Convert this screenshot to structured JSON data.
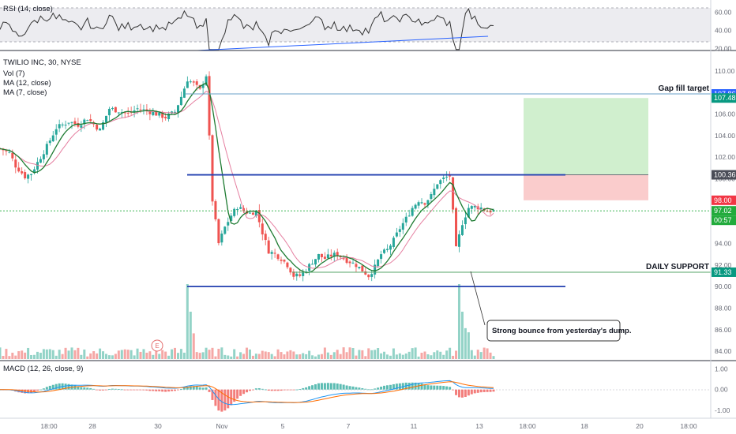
{
  "chart_data": {
    "type": "candlestick",
    "symbol": "TWILIO INC, 30, NYSE",
    "legend": [
      "Vol (7)",
      "MA (12, close)",
      "MA (7, close)"
    ],
    "rsi_label": "RSI (14, close)",
    "macd_label": "MACD (12, 26, close, 9)",
    "price_ticks": [
      "110.00",
      "108.00",
      "106.00",
      "104.00",
      "102.00",
      "100.00",
      "98.00",
      "96.00",
      "94.00",
      "92.00",
      "90.00",
      "88.00",
      "86.00",
      "84.00"
    ],
    "rsi_ticks": [
      "60.00",
      "40.00",
      "20.00"
    ],
    "macd_ticks": [
      "1.00",
      "0.00",
      "-1.00"
    ],
    "x_labels": [
      "18:00",
      "28",
      "30",
      "Nov",
      "5",
      "7",
      "11",
      "13",
      "18:00",
      "18",
      "20",
      "18:00"
    ],
    "price_tags": [
      {
        "value": "107.86",
        "color": "#2962ff"
      },
      {
        "value": "107.48",
        "color": "#089981"
      },
      {
        "value": "100.36",
        "color": "#4a4d57"
      },
      {
        "value": "98.00",
        "color": "#f23645"
      },
      {
        "value": "97.02",
        "color": "#22ab3c"
      },
      {
        "value": "00:57",
        "color": "#22ab3c"
      },
      {
        "value": "91.33",
        "color": "#089981"
      }
    ],
    "annotations": {
      "gap_fill": "Gap fill target",
      "daily_support": "DAILY SUPPORT",
      "callout": "Strong bounce from yesterday's dump.",
      "earnings": "E"
    },
    "levels": {
      "gap_fill_target": 107.86,
      "resistance": 100.36,
      "current": 97.02,
      "daily_support": 91.33,
      "support_low": 90.0
    },
    "position": {
      "entry": 100.36,
      "target": 107.48,
      "stop": 98.0
    },
    "price_path": [
      [
        0,
        102.8
      ],
      [
        3,
        102.4
      ],
      [
        5,
        101.2
      ],
      [
        8,
        100.2
      ],
      [
        10,
        100.5
      ],
      [
        12,
        101.5
      ],
      [
        15,
        103.0
      ],
      [
        18,
        104.7
      ],
      [
        22,
        105.3
      ],
      [
        25,
        105.0
      ],
      [
        28,
        105.6
      ],
      [
        32,
        104.5
      ],
      [
        35,
        106.5
      ],
      [
        38,
        106.3
      ],
      [
        41,
        106.0
      ],
      [
        44,
        106.5
      ],
      [
        47,
        106.3
      ],
      [
        50,
        106.0
      ],
      [
        53,
        105.7
      ],
      [
        56,
        106.2
      ],
      [
        58,
        107.6
      ],
      [
        60,
        109.2
      ],
      [
        62,
        108.8
      ],
      [
        64,
        108.2
      ],
      [
        66,
        109.6
      ],
      [
        68,
        98.0
      ],
      [
        70,
        94.0
      ],
      [
        72,
        95.5
      ],
      [
        74,
        96.6
      ],
      [
        76,
        97.4
      ],
      [
        78,
        97.0
      ],
      [
        80,
        96.8
      ],
      [
        82,
        97.0
      ],
      [
        84,
        95.0
      ],
      [
        86,
        93.3
      ],
      [
        88,
        93.0
      ],
      [
        90,
        92.6
      ],
      [
        92,
        92.0
      ],
      [
        94,
        91.0
      ],
      [
        96,
        91.0
      ],
      [
        98,
        91.6
      ],
      [
        100,
        92.3
      ],
      [
        102,
        92.9
      ],
      [
        104,
        92.6
      ],
      [
        106,
        92.9
      ],
      [
        108,
        93.0
      ],
      [
        110,
        92.6
      ],
      [
        112,
        92.3
      ],
      [
        114,
        92.0
      ],
      [
        116,
        91.5
      ],
      [
        118,
        91.0
      ],
      [
        120,
        91.8
      ],
      [
        122,
        93.0
      ],
      [
        124,
        93.4
      ],
      [
        126,
        94.3
      ],
      [
        128,
        95.4
      ],
      [
        130,
        96.3
      ],
      [
        132,
        97.3
      ],
      [
        134,
        98.0
      ],
      [
        136,
        97.8
      ],
      [
        138,
        98.4
      ],
      [
        140,
        99.6
      ],
      [
        142,
        100.0
      ],
      [
        144,
        100.3
      ],
      [
        146,
        93.5
      ],
      [
        148,
        95.9
      ],
      [
        150,
        97.3
      ],
      [
        152,
        97.4
      ],
      [
        154,
        97.3
      ],
      [
        156,
        97.0
      ],
      [
        158,
        97.02
      ]
    ],
    "ylim": [
      83.5,
      111.3
    ],
    "rsi_ylim": [
      18,
      70
    ],
    "macd_ylim": [
      -1.3,
      1.2
    ]
  }
}
